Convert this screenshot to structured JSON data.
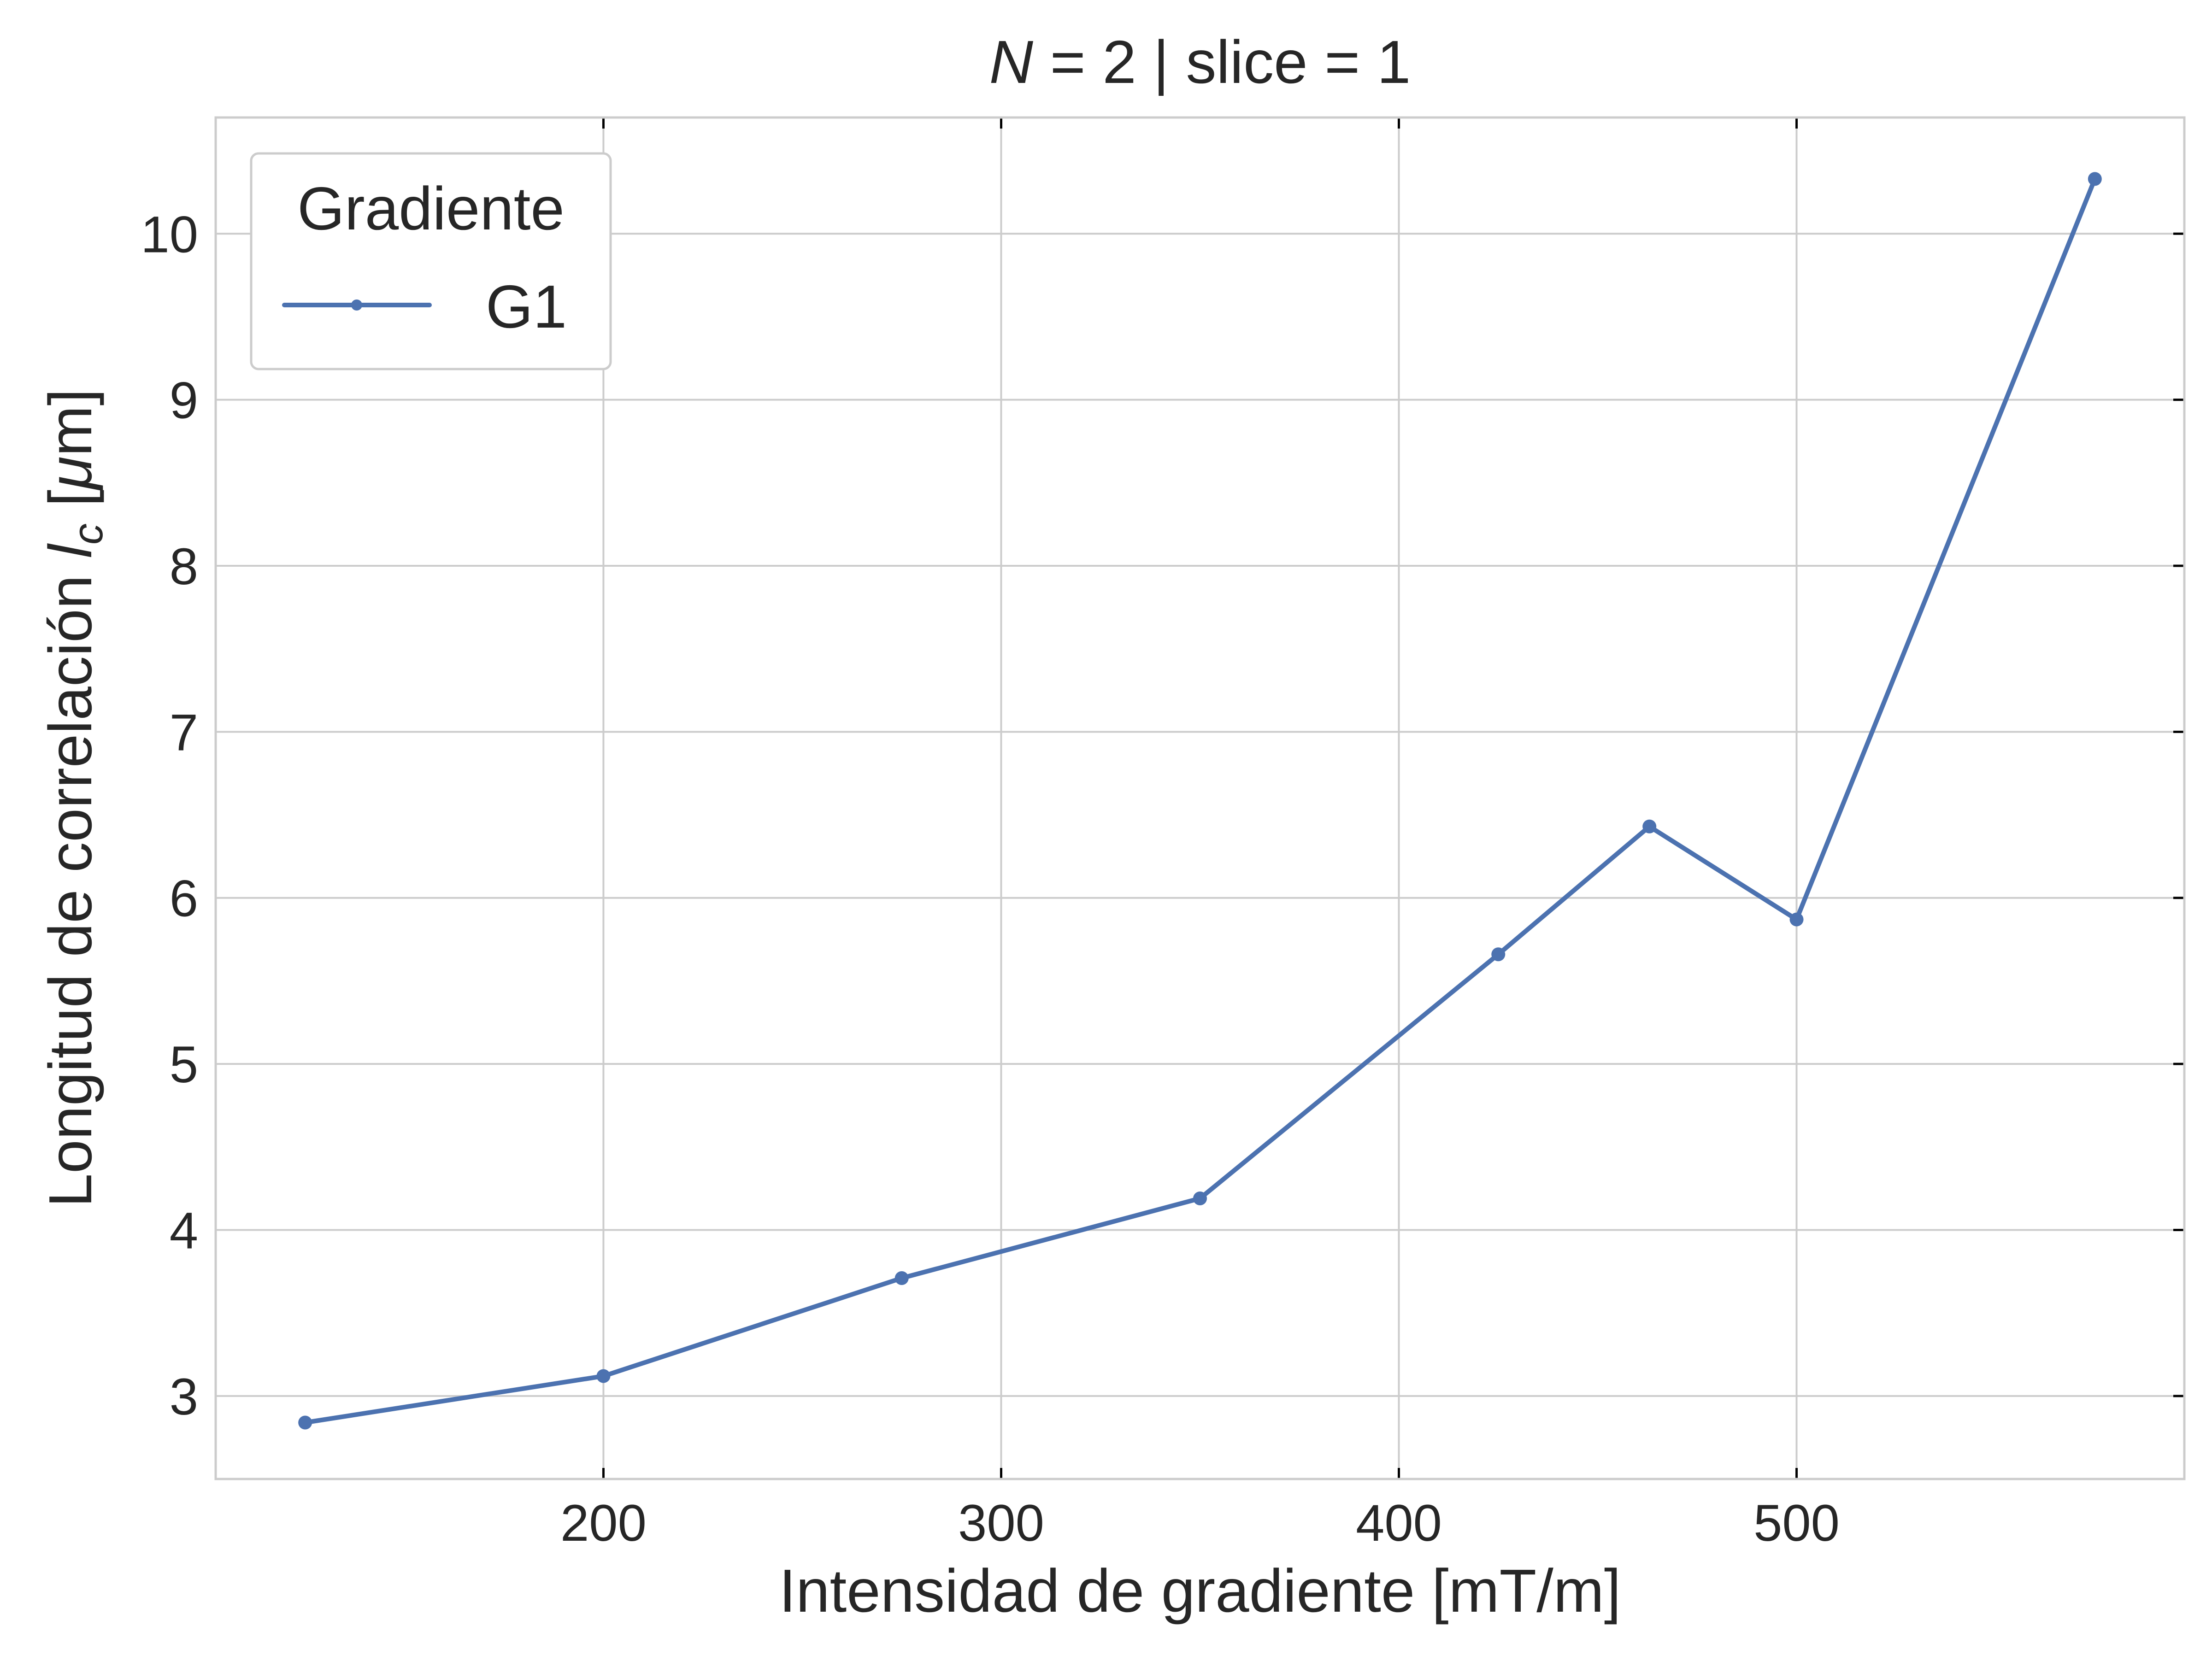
{
  "chart_data": {
    "type": "line",
    "title": {
      "italic_part": "N",
      "rest": " = 2 | slice = 1"
    },
    "xlabel": "Intensidad de gradiente [mT/m]",
    "ylabel": {
      "prefix": "Longitud de correlación ",
      "symbol": "l",
      "subscript": "c",
      "open_bracket": " [",
      "mu": "μ",
      "suffix": "m]"
    },
    "xlim": [
      102.5,
      597.5
    ],
    "ylim": [
      2.5,
      10.7
    ],
    "xticks": [
      200,
      300,
      400,
      500
    ],
    "yticks": [
      3,
      4,
      5,
      6,
      7,
      8,
      9,
      10
    ],
    "grid": true,
    "legend": {
      "title": "Gradiente",
      "placement": "top-left"
    },
    "series": [
      {
        "name": "G1",
        "color": "#4c72b0",
        "x": [
          125,
          200,
          275,
          350,
          425,
          463,
          500,
          575
        ],
        "y": [
          2.84,
          3.12,
          3.71,
          4.19,
          5.66,
          6.43,
          5.87,
          10.33
        ]
      }
    ]
  }
}
